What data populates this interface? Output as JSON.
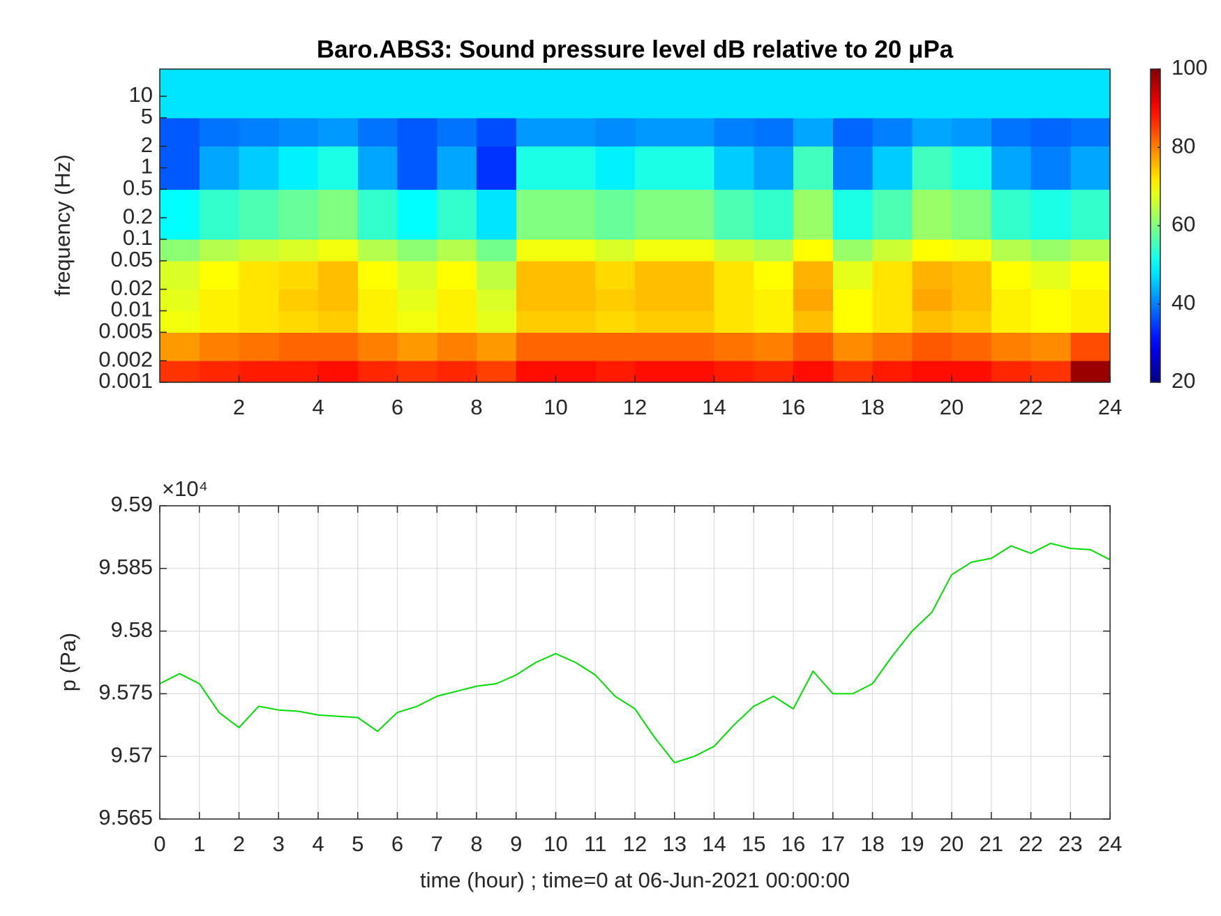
{
  "chart_data": [
    {
      "type": "heatmap",
      "title": "Baro.ABS3: Sound pressure level dB relative to 20 μPa",
      "y_label": "frequency (Hz)",
      "y_scale": "log",
      "xlim": [
        0,
        24
      ],
      "xticks": [
        2,
        4,
        6,
        8,
        10,
        12,
        14,
        16,
        18,
        20,
        22,
        24
      ],
      "ylim": [
        0.001,
        24
      ],
      "yticks": [
        0.001,
        0.002,
        0.005,
        0.01,
        0.02,
        0.05,
        0.1,
        0.2,
        0.5,
        1,
        2,
        5,
        10
      ],
      "x_edges": [
        0,
        1,
        2,
        3,
        4,
        5,
        6,
        7,
        8,
        9,
        10,
        11,
        12,
        13,
        14,
        15,
        16,
        17,
        18,
        19,
        20,
        21,
        22,
        23,
        24
      ],
      "y_edges": [
        0.001,
        0.002,
        0.005,
        0.01,
        0.02,
        0.05,
        0.1,
        0.5,
        2,
        5,
        24
      ],
      "z": [
        [
          86,
          78,
          69,
          68,
          67,
          61,
          50,
          37,
          37,
          48
        ],
        [
          87,
          80,
          71,
          71,
          70,
          64,
          54,
          43,
          39,
          48
        ],
        [
          88,
          81,
          72,
          72,
          72,
          66,
          56,
          46,
          40,
          48
        ],
        [
          88,
          82,
          73,
          74,
          73,
          67,
          58,
          49,
          41,
          48
        ],
        [
          89,
          82,
          74,
          75,
          75,
          69,
          60,
          52,
          42,
          48
        ],
        [
          87,
          80,
          71,
          71,
          70,
          64,
          54,
          43,
          39,
          48
        ],
        [
          86,
          78,
          69,
          68,
          67,
          61,
          50,
          37,
          37,
          48
        ],
        [
          87,
          80,
          71,
          71,
          70,
          64,
          54,
          43,
          39,
          48
        ],
        [
          85,
          78,
          68,
          67,
          65,
          59,
          48,
          34,
          36,
          48
        ],
        [
          89,
          82,
          74,
          75,
          75,
          69,
          60,
          52,
          42,
          48
        ],
        [
          89,
          82,
          74,
          75,
          75,
          69,
          60,
          52,
          42,
          48
        ],
        [
          88,
          82,
          73,
          74,
          73,
          67,
          58,
          49,
          41,
          48
        ],
        [
          89,
          82,
          74,
          75,
          75,
          69,
          60,
          52,
          42,
          48
        ],
        [
          89,
          82,
          74,
          75,
          75,
          69,
          60,
          52,
          42,
          48
        ],
        [
          88,
          81,
          72,
          72,
          72,
          66,
          56,
          46,
          40,
          48
        ],
        [
          87,
          80,
          71,
          71,
          70,
          64,
          54,
          43,
          39,
          48
        ],
        [
          89,
          83,
          75,
          77,
          76,
          70,
          62,
          55,
          43,
          48
        ],
        [
          86,
          79,
          70,
          70,
          68,
          62,
          52,
          40,
          38,
          48
        ],
        [
          88,
          81,
          72,
          72,
          72,
          66,
          56,
          46,
          40,
          48
        ],
        [
          89,
          83,
          75,
          77,
          76,
          70,
          62,
          55,
          43,
          48
        ],
        [
          89,
          82,
          74,
          75,
          75,
          69,
          60,
          52,
          42,
          48
        ],
        [
          87,
          80,
          71,
          71,
          70,
          64,
          54,
          43,
          39,
          48
        ],
        [
          86,
          79,
          70,
          70,
          68,
          62,
          52,
          40,
          38,
          48
        ],
        [
          98,
          84,
          71,
          71,
          70,
          64,
          54,
          43,
          39,
          48
        ]
      ],
      "clim": [
        20,
        100
      ],
      "colorbar_ticks": [
        20,
        40,
        60,
        80,
        100
      ],
      "colormap": "jet"
    },
    {
      "type": "line",
      "x_label": "time (hour) ; time=0 at 06-Jun-2021 00:00:00",
      "y_label": "p (Pa)",
      "y_exponent": "×10⁴",
      "color": "#00dd00",
      "grid": true,
      "xlim": [
        0,
        24
      ],
      "xticks": [
        0,
        1,
        2,
        3,
        4,
        5,
        6,
        7,
        8,
        9,
        10,
        11,
        12,
        13,
        14,
        15,
        16,
        17,
        18,
        19,
        20,
        21,
        22,
        23,
        24
      ],
      "ylim": [
        95650,
        95900
      ],
      "yticks": [
        {
          "value": 95650,
          "label": "9.565"
        },
        {
          "value": 95700,
          "label": "9.57"
        },
        {
          "value": 95750,
          "label": "9.575"
        },
        {
          "value": 95800,
          "label": "9.58"
        },
        {
          "value": 95850,
          "label": "9.585"
        },
        {
          "value": 95900,
          "label": "9.59"
        }
      ],
      "x": [
        0,
        0.5,
        1,
        1.5,
        2,
        2.5,
        3,
        3.5,
        4,
        4.5,
        5,
        5.5,
        6,
        6.5,
        7,
        7.5,
        8,
        8.5,
        9,
        9.5,
        10,
        10.5,
        11,
        11.5,
        12,
        12.5,
        13,
        13.5,
        14,
        14.5,
        15,
        15.5,
        16,
        16.5,
        17,
        17.5,
        18,
        18.5,
        19,
        19.5,
        20,
        20.5,
        21,
        21.5,
        22,
        22.5,
        23,
        23.5,
        24
      ],
      "values": [
        95758,
        95766,
        95758,
        95735,
        95723,
        95740,
        95737,
        95736,
        95733,
        95732,
        95731,
        95720,
        95735,
        95740,
        95748,
        95752,
        95756,
        95758,
        95765,
        95775,
        95782,
        95775,
        95765,
        95748,
        95738,
        95715,
        95695,
        95700,
        95708,
        95725,
        95740,
        95748,
        95738,
        95768,
        95750,
        95750,
        95758,
        95780,
        95800,
        95815,
        95845,
        95855,
        95858,
        95868,
        95862,
        95870,
        95866,
        95865,
        95857
      ]
    }
  ]
}
